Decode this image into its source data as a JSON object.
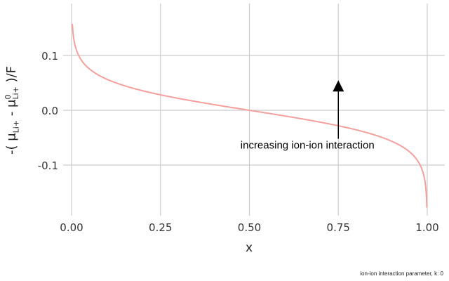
{
  "chart_data": {
    "type": "line",
    "title": "",
    "xlabel": "x",
    "ylabel": "-( μ_Li+ - μ^0_Li+ )/F",
    "ylabel_parts": {
      "prefix": "-( μ",
      "sub1": "Li+",
      "mid": " - μ",
      "sup2": "0",
      "sub2": "Li+",
      "suffix": " )/F"
    },
    "xlim": [
      0,
      1
    ],
    "ylim": [
      -0.19,
      0.195
    ],
    "x_ticks": [
      0.0,
      0.25,
      0.5,
      0.75,
      1.0
    ],
    "x_tick_labels": [
      "0.00",
      "0.25",
      "0.50",
      "0.75",
      "1.00"
    ],
    "y_ticks": [
      -0.1,
      0.0,
      0.1
    ],
    "y_tick_labels": [
      "-0.1",
      "0.0",
      "0.1"
    ],
    "grid": true,
    "legend": null,
    "series": [
      {
        "name": "k = 0",
        "color": "#f4a09c",
        "formula": "0.0257 * ln((1-x)/x)",
        "x": [
          0.001,
          0.005,
          0.01,
          0.02,
          0.05,
          0.1,
          0.15,
          0.2,
          0.25,
          0.3,
          0.35,
          0.4,
          0.45,
          0.5,
          0.55,
          0.6,
          0.65,
          0.7,
          0.75,
          0.8,
          0.85,
          0.9,
          0.95,
          0.98,
          0.99,
          0.995,
          0.999
        ],
        "values": [
          0.1775,
          0.1361,
          0.1181,
          0.1,
          0.0757,
          0.0565,
          0.0446,
          0.0356,
          0.0282,
          0.0218,
          0.0159,
          0.0104,
          0.0052,
          0.0,
          -0.0052,
          -0.0104,
          -0.0159,
          -0.0218,
          -0.0282,
          -0.0356,
          -0.0446,
          -0.0565,
          -0.0757,
          -0.1,
          -0.1181,
          -0.1361,
          -0.1775
        ]
      }
    ],
    "annotations": [
      {
        "type": "arrow",
        "x": 0.75,
        "y_from": -0.052,
        "y_to": 0.051,
        "color": "#000000"
      },
      {
        "type": "text",
        "text": "increasing ion-ion interaction",
        "x": 0.75,
        "y": -0.062
      }
    ],
    "caption": "ion-ion interaction parameter, k: 0"
  }
}
